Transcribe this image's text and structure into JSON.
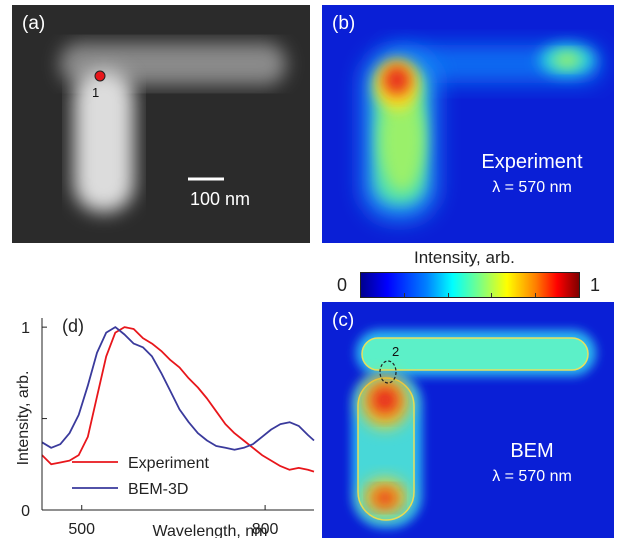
{
  "panel_a": {
    "label": "(a)",
    "marker_label": "1",
    "scalebar_label": "100 nm"
  },
  "panel_b": {
    "label": "(b)",
    "caption_line1": "Experiment",
    "caption_line2": "λ = 570 nm"
  },
  "panel_c": {
    "label": "(c)",
    "marker_label": "2",
    "caption_line1": "BEM",
    "caption_line2": "λ = 570 nm"
  },
  "colorbar": {
    "title": "Intensity, arb.",
    "min_label": "0",
    "max_label": "1"
  },
  "chart_data": {
    "type": "line",
    "label": "(d)",
    "xlabel": "Wavelength, nm",
    "ylabel": "Intensity, arb.",
    "xlim": [
      435,
      880
    ],
    "ylim": [
      0,
      1.05
    ],
    "xticks": [
      500,
      800
    ],
    "yticks": [
      0,
      1
    ],
    "legend_position": "bottom-left",
    "series": [
      {
        "name": "Experiment",
        "color": "#e8161b",
        "x": [
          435,
          450,
          465,
          480,
          495,
          510,
          525,
          540,
          555,
          570,
          585,
          600,
          615,
          630,
          645,
          660,
          675,
          690,
          705,
          720,
          735,
          750,
          765,
          780,
          795,
          810,
          825,
          840,
          855,
          870,
          880
        ],
        "y": [
          0.3,
          0.25,
          0.26,
          0.27,
          0.3,
          0.4,
          0.62,
          0.84,
          0.97,
          1.0,
          0.99,
          0.94,
          0.91,
          0.87,
          0.82,
          0.78,
          0.72,
          0.67,
          0.61,
          0.54,
          0.47,
          0.42,
          0.38,
          0.34,
          0.3,
          0.27,
          0.24,
          0.22,
          0.23,
          0.22,
          0.21
        ]
      },
      {
        "name": "BEM-3D",
        "color": "#3a3a9c",
        "x": [
          435,
          450,
          465,
          480,
          495,
          510,
          525,
          540,
          555,
          570,
          585,
          600,
          615,
          630,
          645,
          660,
          675,
          690,
          705,
          720,
          735,
          750,
          765,
          780,
          795,
          810,
          825,
          840,
          855,
          870,
          880
        ],
        "y": [
          0.37,
          0.34,
          0.36,
          0.42,
          0.52,
          0.68,
          0.86,
          0.97,
          1.0,
          0.96,
          0.91,
          0.89,
          0.84,
          0.75,
          0.65,
          0.55,
          0.48,
          0.42,
          0.38,
          0.35,
          0.34,
          0.33,
          0.34,
          0.36,
          0.4,
          0.44,
          0.47,
          0.48,
          0.46,
          0.41,
          0.38
        ]
      }
    ]
  }
}
